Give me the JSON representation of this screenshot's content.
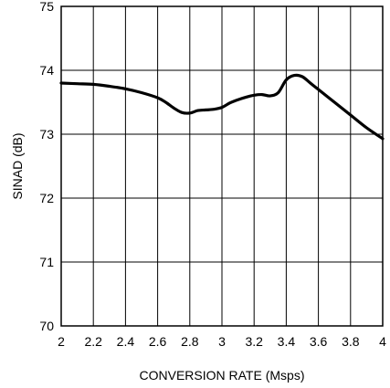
{
  "chart_data": {
    "type": "line",
    "title": "",
    "xlabel": "CONVERSION RATE (Msps)",
    "ylabel": "SINAD (dB)",
    "xlim": [
      2,
      4
    ],
    "ylim": [
      70,
      75
    ],
    "xticks": [
      2,
      2.2,
      2.4,
      2.6,
      2.8,
      3,
      3.2,
      3.4,
      3.6,
      3.8,
      4
    ],
    "xtick_labels": [
      "2",
      "2.2",
      "2.4",
      "2.6",
      "2.8",
      "3",
      "3.2",
      "3.4",
      "3.6",
      "3.8",
      "4"
    ],
    "yticks": [
      70,
      71,
      72,
      73,
      74,
      75
    ],
    "ytick_labels": [
      "70",
      "71",
      "72",
      "73",
      "74",
      "75"
    ],
    "grid": true,
    "series": [
      {
        "x": [
          2.0,
          2.1,
          2.2,
          2.3,
          2.4,
          2.5,
          2.6,
          2.65,
          2.7,
          2.75,
          2.8,
          2.85,
          2.9,
          2.95,
          3.0,
          3.05,
          3.1,
          3.15,
          3.2,
          3.25,
          3.3,
          3.35,
          3.4,
          3.45,
          3.5,
          3.55,
          3.6,
          3.7,
          3.8,
          3.9,
          4.0
        ],
        "y": [
          73.8,
          73.79,
          73.78,
          73.75,
          73.71,
          73.65,
          73.57,
          73.5,
          73.41,
          73.34,
          73.33,
          73.37,
          73.38,
          73.39,
          73.42,
          73.49,
          73.54,
          73.58,
          73.61,
          73.62,
          73.6,
          73.65,
          73.85,
          73.92,
          73.9,
          73.8,
          73.7,
          73.5,
          73.3,
          73.1,
          72.93
        ]
      }
    ]
  }
}
